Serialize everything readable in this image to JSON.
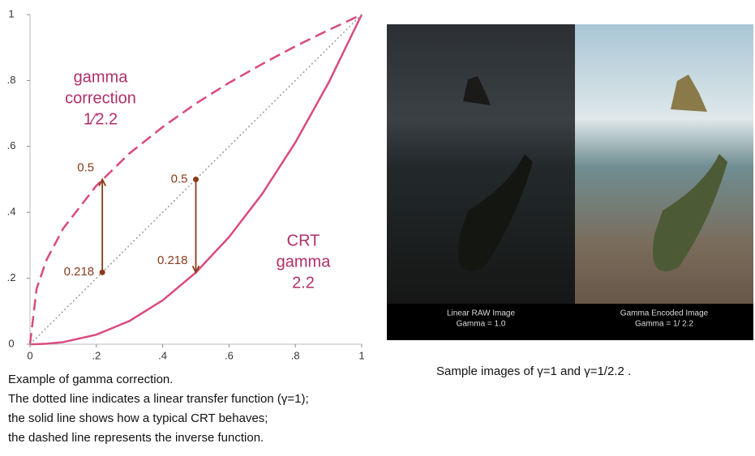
{
  "chart_data": {
    "type": "line",
    "x": [
      0,
      0.02,
      0.05,
      0.1,
      0.2,
      0.3,
      0.4,
      0.5,
      0.6,
      0.7,
      0.8,
      0.9,
      1
    ],
    "series": [
      {
        "color": "#d94a7e",
        "style": "solid",
        "values": [
          0,
          0.0002,
          0.0014,
          0.0063,
          0.029,
          0.0707,
          0.1332,
          0.2176,
          0.325,
          0.456,
          0.612,
          0.793,
          1
        ]
      },
      {
        "color": "#d94a7e",
        "style": "dashed",
        "values": [
          0,
          0.169,
          0.256,
          0.351,
          0.481,
          0.579,
          0.659,
          0.73,
          0.793,
          0.85,
          0.904,
          0.953,
          1
        ]
      },
      {
        "color": "#999999",
        "style": "dotted",
        "values": [
          0,
          0.02,
          0.05,
          0.1,
          0.2,
          0.3,
          0.4,
          0.5,
          0.6,
          0.7,
          0.8,
          0.9,
          1
        ]
      }
    ],
    "xlim": [
      0,
      1
    ],
    "ylim": [
      0,
      1
    ],
    "xticks": [
      0,
      {
        "value": 0.2,
        "label": ".2"
      },
      {
        "value": 0.4,
        "label": ".4"
      },
      {
        "value": 0.6,
        "label": ".6"
      },
      {
        "value": 0.8,
        "label": ".8"
      },
      1
    ],
    "yticks": [
      0,
      {
        "value": 0.2,
        "label": ".2"
      },
      {
        "value": 0.4,
        "label": ".4"
      },
      {
        "value": 0.6,
        "label": ".6"
      },
      {
        "value": 0.8,
        "label": ".8"
      },
      1
    ],
    "arrows": [
      {
        "x": 0.218,
        "y_from": 0.218,
        "y_to": 0.5
      },
      {
        "x": 0.5,
        "y_from": 0.5,
        "y_to": 0.218
      }
    ],
    "arrow_color": "#8b3a1a",
    "annotations": [
      [
        "gamma",
        "correction",
        "1⁄2.2"
      ],
      [
        "CRT",
        "gamma",
        "2.2"
      ]
    ]
  },
  "caption": [
    "Example of  gamma correction.",
    "The dotted line indicates a linear transfer function (γ=1);",
    "the solid line shows how a typical CRT behaves;",
    "the dashed line represents the inverse function."
  ],
  "image": {
    "left_label": [
      "Linear RAW Image",
      "Gamma = 1.0"
    ],
    "right_label": [
      "Gamma Encoded Image",
      "Gamma = 1/ 2.2"
    ],
    "caption": "Sample images of γ=1 and γ=1/2.2 ."
  }
}
